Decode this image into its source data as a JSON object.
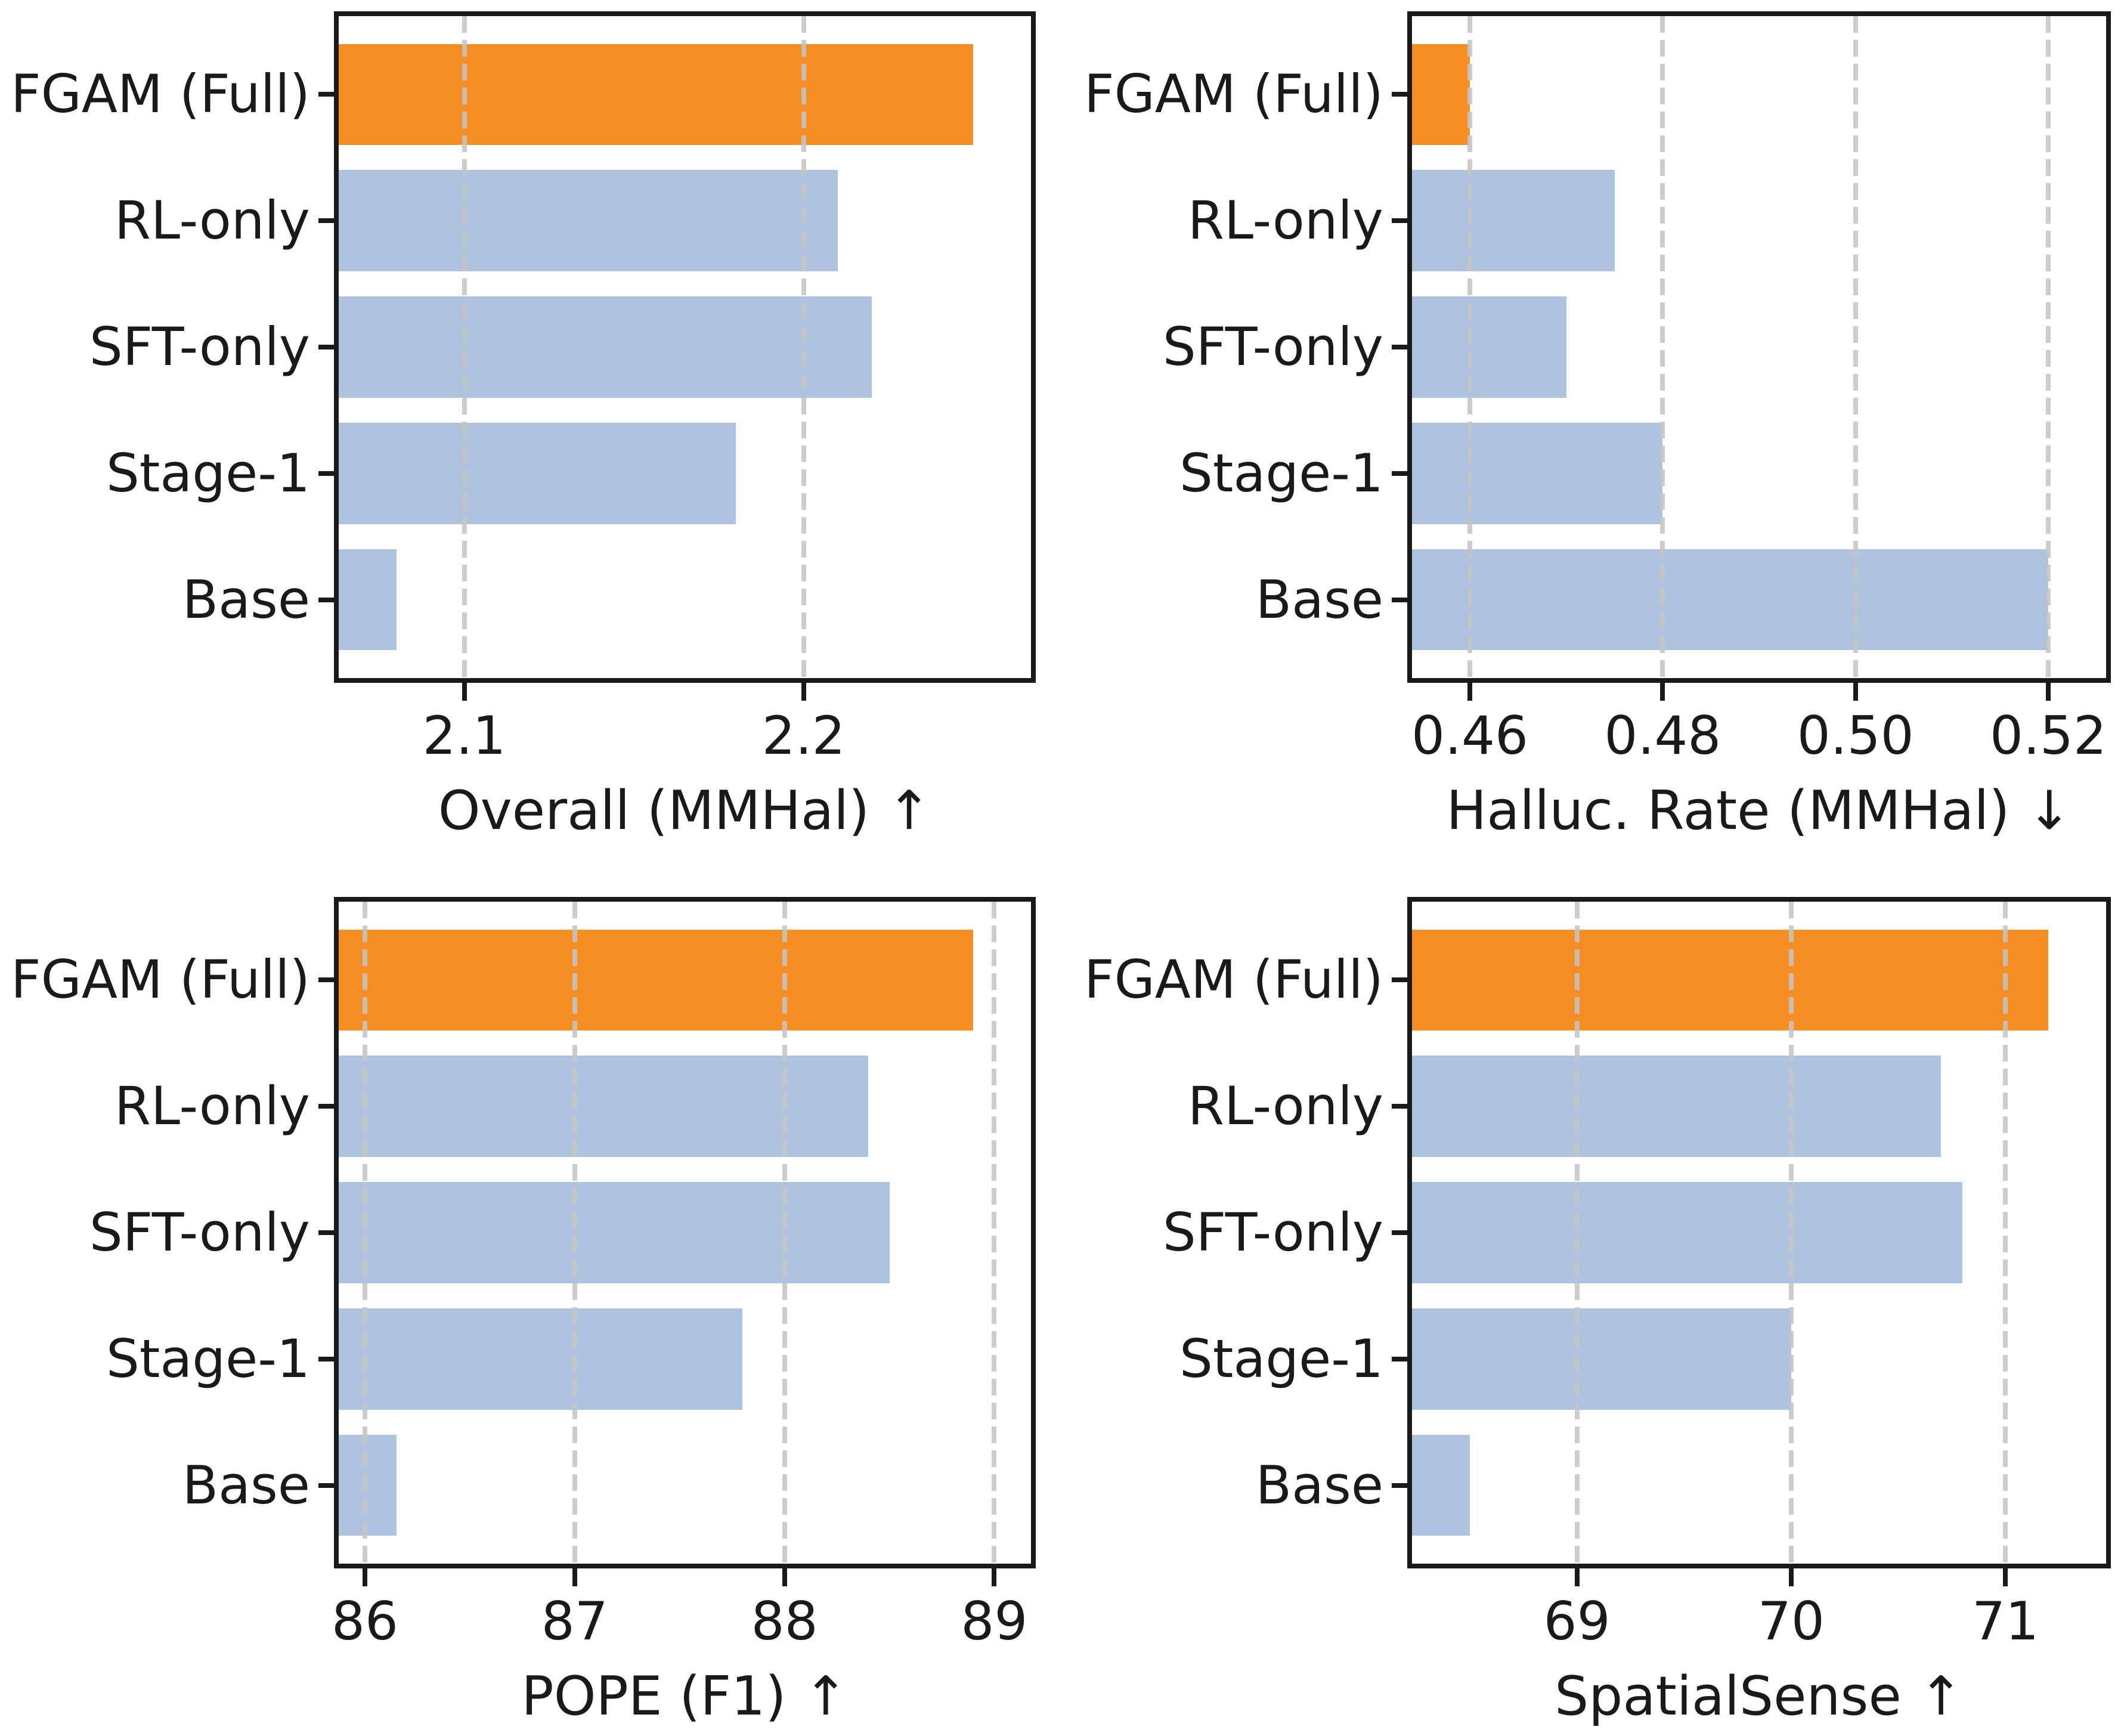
{
  "figure": {
    "description": "2x2 grid of horizontal bar charts, ablation study of FGAM",
    "background": "#ffffff"
  },
  "style": {
    "highlight_color": "#f58d22",
    "bar_color": "#aec3e0",
    "grid_color": "#c5c5c5",
    "axis_color": "#1a1a1a",
    "text_color": "#1a1a1a"
  },
  "categories": [
    "FGAM (Full)",
    "RL-only",
    "SFT-only",
    "Stage-1",
    "Base"
  ],
  "chart_data": [
    {
      "id": "overall-mmhal",
      "type": "bar",
      "orientation": "horizontal",
      "xlabel": "Overall (MMHal) ↑",
      "arrow": "up",
      "grid": true,
      "legend": null,
      "categories": [
        "FGAM (Full)",
        "RL-only",
        "SFT-only",
        "Stage-1",
        "Base"
      ],
      "values": [
        2.25,
        2.21,
        2.22,
        2.18,
        2.08
      ],
      "highlight_index": 0,
      "xlim": [
        2.063,
        2.267
      ],
      "xticks": [
        {
          "value": 2.1,
          "label": "2.1"
        },
        {
          "value": 2.2,
          "label": "2.2"
        }
      ]
    },
    {
      "id": "halluc-rate-mmhal",
      "type": "bar",
      "orientation": "horizontal",
      "xlabel": "Halluc. Rate (MMHal) ↓",
      "arrow": "down",
      "grid": true,
      "legend": null,
      "categories": [
        "FGAM (Full)",
        "RL-only",
        "SFT-only",
        "Stage-1",
        "Base"
      ],
      "values": [
        0.46,
        0.475,
        0.47,
        0.48,
        0.52
      ],
      "highlight_index": 0,
      "xlim": [
        0.454,
        0.526
      ],
      "xticks": [
        {
          "value": 0.46,
          "label": "0.46"
        },
        {
          "value": 0.48,
          "label": "0.48"
        },
        {
          "value": 0.5,
          "label": "0.50"
        },
        {
          "value": 0.52,
          "label": "0.52"
        }
      ]
    },
    {
      "id": "pope-f1",
      "type": "bar",
      "orientation": "horizontal",
      "xlabel": "POPE (F1) ↑",
      "arrow": "up",
      "grid": true,
      "legend": null,
      "categories": [
        "FGAM (Full)",
        "RL-only",
        "SFT-only",
        "Stage-1",
        "Base"
      ],
      "values": [
        88.9,
        88.4,
        88.5,
        87.8,
        86.15
      ],
      "highlight_index": 0,
      "xlim": [
        85.875,
        89.175
      ],
      "xticks": [
        {
          "value": 86,
          "label": "86"
        },
        {
          "value": 87,
          "label": "87"
        },
        {
          "value": 88,
          "label": "88"
        },
        {
          "value": 89,
          "label": "89"
        }
      ]
    },
    {
      "id": "spatialsense",
      "type": "bar",
      "orientation": "horizontal",
      "xlabel": "SpatialSense ↑",
      "arrow": "up",
      "grid": true,
      "legend": null,
      "categories": [
        "FGAM (Full)",
        "RL-only",
        "SFT-only",
        "Stage-1",
        "Base"
      ],
      "values": [
        71.2,
        70.7,
        70.8,
        70.0,
        68.5
      ],
      "highlight_index": 0,
      "xlim": [
        68.23,
        71.47
      ],
      "xticks": [
        {
          "value": 69,
          "label": "69"
        },
        {
          "value": 70,
          "label": "70"
        },
        {
          "value": 71,
          "label": "71"
        }
      ]
    }
  ]
}
